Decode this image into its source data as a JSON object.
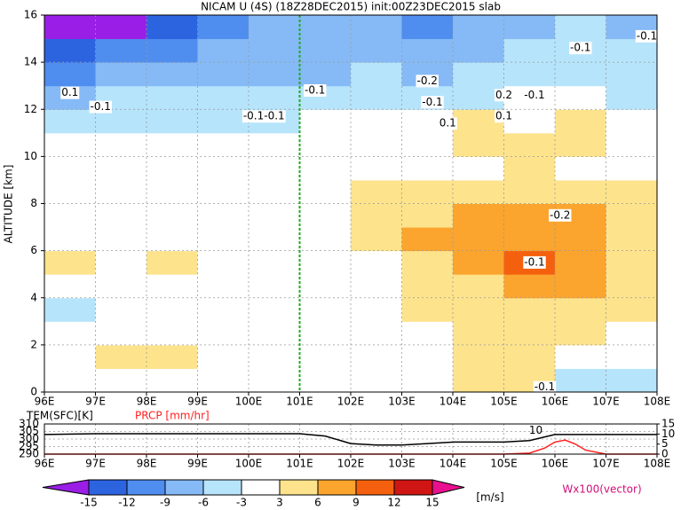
{
  "chart_data": [
    {
      "type": "heatmap",
      "title": "NICAM U (4S) (18Z28DEC2015) init:00Z23DEC2015 slab",
      "ylabel": "ALTITUDE [km]",
      "xlim": [
        96,
        108
      ],
      "ylim": [
        0,
        16
      ],
      "xticks": [
        {
          "value": 96,
          "label": "96E"
        },
        {
          "value": 97,
          "label": "97E"
        },
        {
          "value": 98,
          "label": "98E"
        },
        {
          "value": 99,
          "label": "99E"
        },
        {
          "value": 100,
          "label": "100E"
        },
        {
          "value": 101,
          "label": "101E"
        },
        {
          "value": 102,
          "label": "102E"
        },
        {
          "value": 103,
          "label": "103E"
        },
        {
          "value": 104,
          "label": "104E"
        },
        {
          "value": 105,
          "label": "105E"
        },
        {
          "value": 106,
          "label": "106E"
        },
        {
          "value": 107,
          "label": "107E"
        },
        {
          "value": 108,
          "label": "108E"
        }
      ],
      "yticks": [
        0,
        2,
        4,
        6,
        8,
        10,
        12,
        14,
        16
      ],
      "grid": true,
      "x_edges": [
        96,
        97,
        98,
        99,
        100,
        101,
        102,
        103,
        104,
        105,
        106,
        107,
        108
      ],
      "y_edges": [
        0,
        1,
        2,
        3,
        4,
        5,
        6,
        7,
        8,
        9,
        10,
        11,
        12,
        13,
        14,
        15,
        16
      ],
      "values": [
        [
          -2,
          -3,
          -2,
          0,
          0,
          0,
          0,
          2,
          3,
          3,
          -4,
          -4
        ],
        [
          -3,
          4,
          3,
          0,
          0,
          0,
          0,
          2,
          3,
          4,
          2,
          -3
        ],
        [
          -2,
          -1,
          -3,
          -2,
          0,
          0,
          0,
          2,
          4,
          5,
          3,
          2
        ],
        [
          -4,
          -3,
          -3,
          -2,
          -2,
          0,
          2,
          3,
          4,
          5,
          4,
          3
        ],
        [
          -3,
          0,
          0,
          0,
          0,
          0,
          2,
          4,
          5,
          7,
          6,
          4
        ],
        [
          3,
          0,
          4,
          2,
          0,
          0,
          2,
          5,
          6,
          9,
          7,
          5
        ],
        [
          0,
          0,
          0,
          0,
          0,
          0,
          3,
          6,
          7,
          8,
          7,
          5
        ],
        [
          0,
          0,
          0,
          0,
          0,
          0,
          4,
          5,
          7,
          7,
          6,
          4
        ],
        [
          0,
          0,
          0,
          0,
          0,
          1,
          3,
          3,
          4,
          4,
          4,
          3
        ],
        [
          0,
          0,
          0,
          0,
          0,
          0,
          0,
          0,
          2,
          3,
          2,
          1
        ],
        [
          -2,
          0,
          0,
          0,
          0,
          0,
          0,
          1,
          4,
          3,
          4,
          2
        ],
        [
          -4,
          -4,
          -4,
          -4,
          -4,
          -3,
          -2,
          -2,
          4,
          2,
          4,
          -2
        ],
        [
          -7,
          -6,
          -6,
          -5,
          -5,
          -5,
          -4,
          -5,
          -4,
          -3,
          -3,
          -4
        ],
        [
          -10,
          -9,
          -8,
          -7,
          -7,
          -7,
          -6,
          -7,
          -6,
          -5,
          -4,
          -5
        ],
        [
          -14,
          -12,
          -10,
          -9,
          -8,
          -7,
          -7,
          -8,
          -7,
          -6,
          -5,
          -6
        ],
        [
          -16,
          -16,
          -13,
          -10,
          -9,
          -8,
          -8,
          -10,
          -9,
          -7,
          -6,
          -7
        ]
      ],
      "levels": [
        -15,
        -12,
        -9,
        -6,
        -3,
        3,
        6,
        9,
        12,
        15
      ],
      "level_colors": [
        "#9a1ee6",
        "#2c64e0",
        "#4f8def",
        "#86baf6",
        "#b6e4fb",
        "#ffffff",
        "#fde38c",
        "#fba42e",
        "#f4600e",
        "#d01515",
        "#e8108e"
      ],
      "colorbar_unit": "[m/s]",
      "vector_label": "Wx100(vector)",
      "reference_x": 101,
      "reference_color": "#22aa22",
      "annotations": [
        {
          "x": 96.5,
          "y": 12.7,
          "text": "0.1"
        },
        {
          "x": 97.1,
          "y": 12.1,
          "text": "-0.1"
        },
        {
          "x": 101.3,
          "y": 12.8,
          "text": "-0.1"
        },
        {
          "x": 100.3,
          "y": 11.7,
          "text": "-0.1-0.1"
        },
        {
          "x": 103.5,
          "y": 13.2,
          "text": "-0.2"
        },
        {
          "x": 103.6,
          "y": 12.3,
          "text": "-0.1"
        },
        {
          "x": 103.9,
          "y": 11.4,
          "text": "0.1"
        },
        {
          "x": 105.0,
          "y": 12.6,
          "text": "0.2"
        },
        {
          "x": 105.6,
          "y": 12.6,
          "text": "-0.1"
        },
        {
          "x": 105.0,
          "y": 11.7,
          "text": "0.1"
        },
        {
          "x": 106.5,
          "y": 14.6,
          "text": "-0.1"
        },
        {
          "x": 107.8,
          "y": 15.1,
          "text": "-0.1"
        },
        {
          "x": 105.6,
          "y": 5.5,
          "text": "-0.1"
        },
        {
          "x": 106.1,
          "y": 7.5,
          "text": "-0.2"
        },
        {
          "x": 105.8,
          "y": 0.2,
          "text": "-0.1"
        }
      ]
    },
    {
      "type": "line",
      "xlim": [
        96,
        108
      ],
      "ylim": [
        290,
        310
      ],
      "y2lim": [
        0,
        15
      ],
      "xticks": [
        {
          "value": 96,
          "label": "96E"
        },
        {
          "value": 97,
          "label": "97E"
        },
        {
          "value": 98,
          "label": "98E"
        },
        {
          "value": 99,
          "label": "99E"
        },
        {
          "value": 100,
          "label": "100E"
        },
        {
          "value": 101,
          "label": "101E"
        },
        {
          "value": 102,
          "label": "102E"
        },
        {
          "value": 103,
          "label": "103E"
        },
        {
          "value": 104,
          "label": "104E"
        },
        {
          "value": 105,
          "label": "105E"
        },
        {
          "value": 106,
          "label": "106E"
        },
        {
          "value": 107,
          "label": "107E"
        },
        {
          "value": 108,
          "label": "108E"
        }
      ],
      "yticks": [
        290,
        295,
        300,
        305,
        310
      ],
      "y2ticks": [
        0,
        5,
        10,
        15
      ],
      "ylabel": "TEM(SFC)[K]",
      "ylabel_color": "#000000",
      "y2label": "PRCP [mm/hr]",
      "y2label_color": "#ff2020",
      "grid": true,
      "series": [
        {
          "color": "#000000",
          "x": [
            96,
            97,
            98,
            99,
            100,
            101,
            101.5,
            102,
            102.5,
            103,
            103.5,
            104,
            105,
            105.5,
            106,
            106.5,
            107,
            108
          ],
          "values": [
            303,
            303.5,
            303.5,
            303.5,
            303.5,
            303.5,
            302,
            297,
            296,
            296,
            297,
            298,
            298,
            299,
            303,
            303,
            303,
            303
          ]
        },
        {
          "color": "#ff2020",
          "axis": "y2",
          "x": [
            96,
            101,
            105,
            105.5,
            105.8,
            106,
            106.2,
            106.4,
            106.6,
            107,
            108
          ],
          "values": [
            0,
            0,
            0,
            0.5,
            3,
            6,
            7,
            5,
            2,
            0,
            0
          ]
        }
      ],
      "annotations": [
        {
          "x": 105.8,
          "y": 10,
          "axis": "y2",
          "text": "10"
        }
      ]
    }
  ]
}
